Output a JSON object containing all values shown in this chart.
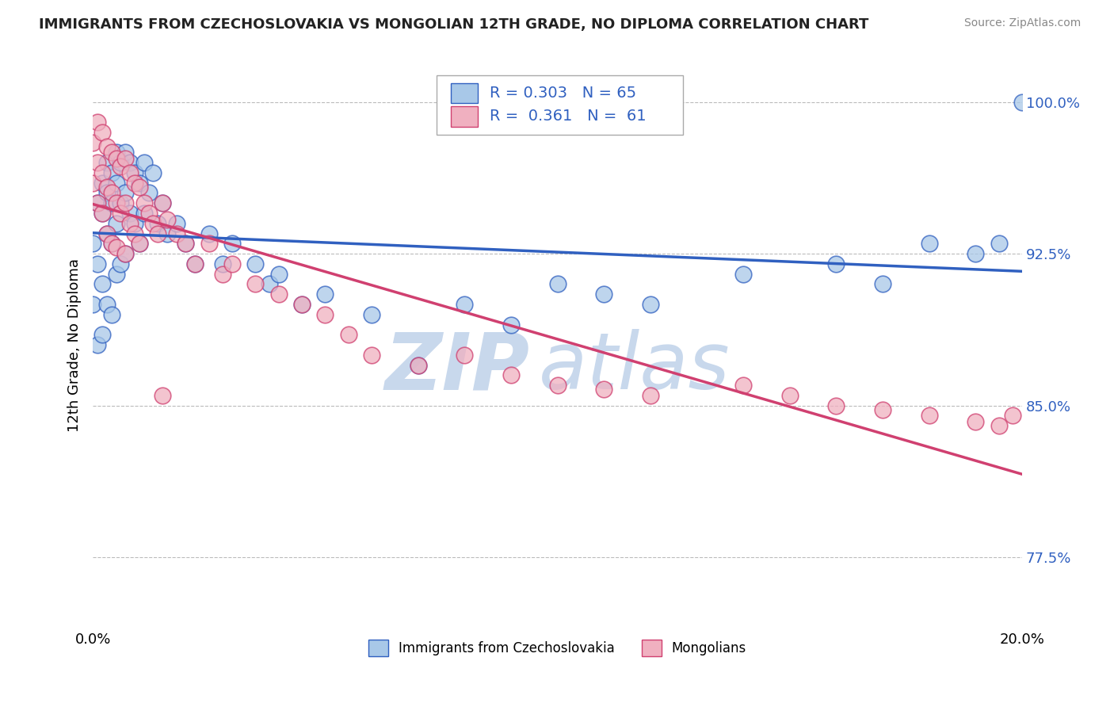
{
  "title": "IMMIGRANTS FROM CZECHOSLOVAKIA VS MONGOLIAN 12TH GRADE, NO DIPLOMA CORRELATION CHART",
  "source": "Source: ZipAtlas.com",
  "legend_blue_label": "Immigrants from Czechoslovakia",
  "legend_pink_label": "Mongolians",
  "R_blue": 0.303,
  "N_blue": 65,
  "R_pink": 0.361,
  "N_pink": 61,
  "blue_color": "#a8c8e8",
  "pink_color": "#f0b0c0",
  "trend_blue": "#3060c0",
  "trend_pink": "#d04070",
  "blue_scatter_x": [
    0.0,
    0.0,
    0.001,
    0.001,
    0.001,
    0.002,
    0.002,
    0.002,
    0.002,
    0.003,
    0.003,
    0.003,
    0.003,
    0.004,
    0.004,
    0.004,
    0.004,
    0.005,
    0.005,
    0.005,
    0.005,
    0.006,
    0.006,
    0.006,
    0.007,
    0.007,
    0.007,
    0.008,
    0.008,
    0.009,
    0.009,
    0.01,
    0.01,
    0.011,
    0.011,
    0.012,
    0.013,
    0.014,
    0.015,
    0.016,
    0.018,
    0.02,
    0.022,
    0.025,
    0.028,
    0.03,
    0.035,
    0.038,
    0.04,
    0.045,
    0.05,
    0.06,
    0.07,
    0.08,
    0.09,
    0.1,
    0.11,
    0.12,
    0.14,
    0.16,
    0.17,
    0.18,
    0.19,
    0.195,
    0.2
  ],
  "blue_scatter_y": [
    0.93,
    0.9,
    0.95,
    0.92,
    0.88,
    0.96,
    0.945,
    0.91,
    0.885,
    0.97,
    0.955,
    0.935,
    0.9,
    0.965,
    0.95,
    0.93,
    0.895,
    0.975,
    0.96,
    0.94,
    0.915,
    0.97,
    0.95,
    0.92,
    0.975,
    0.955,
    0.925,
    0.97,
    0.945,
    0.965,
    0.94,
    0.96,
    0.93,
    0.97,
    0.945,
    0.955,
    0.965,
    0.94,
    0.95,
    0.935,
    0.94,
    0.93,
    0.92,
    0.935,
    0.92,
    0.93,
    0.92,
    0.91,
    0.915,
    0.9,
    0.905,
    0.895,
    0.87,
    0.9,
    0.89,
    0.91,
    0.905,
    0.9,
    0.915,
    0.92,
    0.91,
    0.93,
    0.925,
    0.93,
    1.0
  ],
  "pink_scatter_x": [
    0.0,
    0.0,
    0.001,
    0.001,
    0.001,
    0.002,
    0.002,
    0.002,
    0.003,
    0.003,
    0.003,
    0.004,
    0.004,
    0.004,
    0.005,
    0.005,
    0.005,
    0.006,
    0.006,
    0.007,
    0.007,
    0.007,
    0.008,
    0.008,
    0.009,
    0.009,
    0.01,
    0.01,
    0.011,
    0.012,
    0.013,
    0.014,
    0.015,
    0.016,
    0.018,
    0.02,
    0.022,
    0.025,
    0.028,
    0.03,
    0.035,
    0.04,
    0.045,
    0.05,
    0.055,
    0.06,
    0.07,
    0.08,
    0.09,
    0.1,
    0.11,
    0.12,
    0.14,
    0.15,
    0.16,
    0.17,
    0.18,
    0.19,
    0.195,
    0.198,
    0.015
  ],
  "pink_scatter_y": [
    0.98,
    0.96,
    0.99,
    0.97,
    0.95,
    0.985,
    0.965,
    0.945,
    0.978,
    0.958,
    0.935,
    0.975,
    0.955,
    0.93,
    0.972,
    0.95,
    0.928,
    0.968,
    0.945,
    0.972,
    0.95,
    0.925,
    0.965,
    0.94,
    0.96,
    0.935,
    0.958,
    0.93,
    0.95,
    0.945,
    0.94,
    0.935,
    0.95,
    0.942,
    0.935,
    0.93,
    0.92,
    0.93,
    0.915,
    0.92,
    0.91,
    0.905,
    0.9,
    0.895,
    0.885,
    0.875,
    0.87,
    0.875,
    0.865,
    0.86,
    0.858,
    0.855,
    0.86,
    0.855,
    0.85,
    0.848,
    0.845,
    0.842,
    0.84,
    0.845,
    0.855
  ],
  "xmin": 0.0,
  "xmax": 0.2,
  "ymin": 0.74,
  "ymax": 1.02,
  "yticks": [
    0.775,
    0.85,
    0.925,
    1.0
  ],
  "ytick_labels": [
    "77.5%",
    "85.0%",
    "92.5%",
    "100.0%"
  ],
  "xtick_left": 0.0,
  "xtick_right": 0.2,
  "xtick_label_left": "0.0%",
  "xtick_label_right": "20.0%",
  "watermark_zip": "ZIP",
  "watermark_atlas": "atlas",
  "watermark_color": "#c8d8ec"
}
